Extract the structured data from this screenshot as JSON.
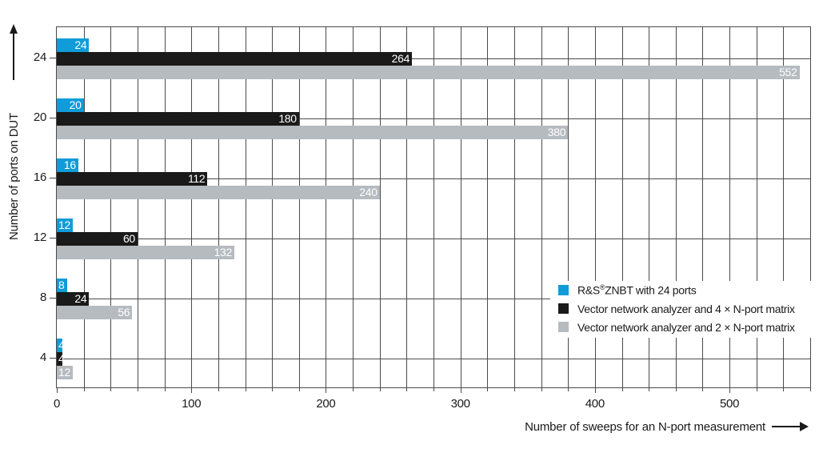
{
  "chart_data": {
    "type": "bar",
    "orientation": "horizontal",
    "title": "",
    "xlabel": "Number of sweeps for an N-port measurement",
    "ylabel": "Number of ports on DUT",
    "xlim": [
      0,
      560
    ],
    "x_major_ticks": [
      0,
      100,
      200,
      300,
      400,
      500
    ],
    "x_minor_step": 20,
    "grid": true,
    "legend_position": "inside plot, right lower area",
    "categories": [
      "24",
      "20",
      "16",
      "12",
      "8",
      "4"
    ],
    "series": [
      {
        "name": "R&S®ZNBT with 24 ports",
        "color": "#0f9cd8",
        "values": [
          24,
          20,
          16,
          12,
          8,
          4
        ]
      },
      {
        "name": "Vector network analyzer and 4 × N-port matrix",
        "color": "#1a1a1a",
        "values": [
          264,
          180,
          112,
          60,
          24,
          4
        ]
      },
      {
        "name": "Vector network analyzer and 2 × N-port matrix",
        "color": "#b6bbc0",
        "values": [
          552,
          380,
          240,
          132,
          56,
          12
        ]
      }
    ],
    "bar_value_labels": [
      "24",
      "264",
      "552",
      "20",
      "180",
      "380",
      "16",
      "112",
      "240",
      "12",
      "60",
      "132",
      "8",
      "24",
      "56",
      "4",
      "4",
      "12"
    ]
  },
  "style": {
    "background": "#ffffff",
    "grid_color": "#4a4a4a",
    "text_color": "#1a1a1a",
    "bar_label_color": "#ffffff",
    "accent_blue": "#0f9cd8",
    "bar_black": "#1a1a1a",
    "bar_gray": "#b6bbc0"
  }
}
